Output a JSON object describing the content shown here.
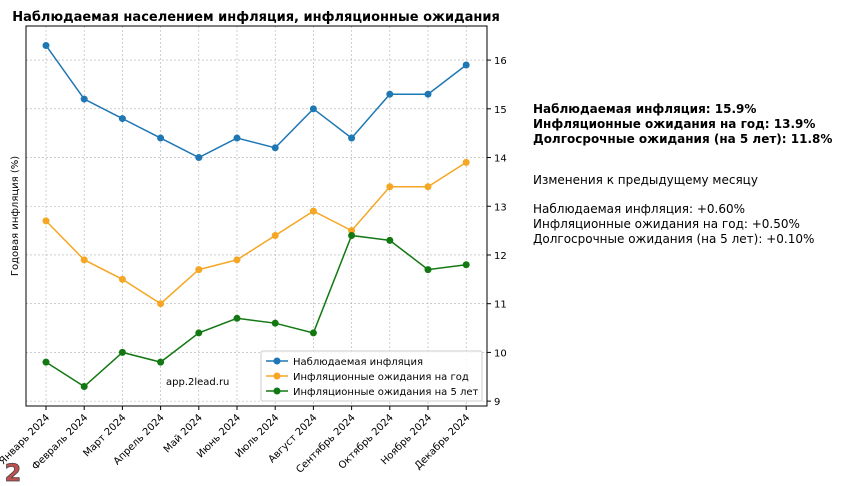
{
  "chart_data": {
    "type": "line",
    "title": "Наблюдаемая населением инфляция, инфляционные ожидания",
    "xlabel": "",
    "ylabel": "Годовая инфляция (%)",
    "categories": [
      "Январь 2024",
      "Февраль 2024",
      "Март 2024",
      "Апрель 2024",
      "Май 2024",
      "Июнь 2024",
      "Июль 2024",
      "Август 2024",
      "Сентябрь 2024",
      "Октябрь 2024",
      "Ноябрь 2024",
      "Декабрь 2024"
    ],
    "series": [
      {
        "name": "Наблюдаемая инфляция",
        "color": "#1f77b4",
        "values": [
          16.3,
          15.2,
          14.8,
          14.4,
          14.0,
          14.4,
          14.2,
          15.0,
          14.4,
          15.3,
          15.3,
          15.9
        ]
      },
      {
        "name": "Инфляционные ожидания на год",
        "color": "#f5a623",
        "values": [
          12.7,
          11.9,
          11.5,
          11.0,
          11.7,
          11.9,
          12.4,
          12.9,
          12.5,
          13.4,
          13.4,
          13.9
        ]
      },
      {
        "name": "Инфляционные ожидания на 5 лет",
        "color": "#127812",
        "values": [
          9.8,
          9.3,
          10.0,
          9.8,
          10.4,
          10.7,
          10.6,
          10.4,
          12.4,
          12.3,
          11.7,
          11.8
        ]
      }
    ],
    "ylim": [
      8.9,
      16.7
    ],
    "yticks": [
      9,
      10,
      11,
      12,
      13,
      14,
      15,
      16
    ],
    "y_axis_side": "right",
    "grid": true,
    "legend": "lower-right",
    "annotation": "app.2lead.ru"
  },
  "summary": {
    "observed": "Наблюдаемая инфляция: 15.9%",
    "one_year": "Инфляционные ожидания на год: 13.9%",
    "five_year": "Долгосрочные ожидания (на 5 лет): 11.8%",
    "changes_title": "Изменения к предыдущему месяцу",
    "observed_change": "Наблюдаемая инфляция: +0.60%",
    "one_year_change": "Инфляционные ожидания на год: +0.50%",
    "five_year_change": "Долгосрочные ожидания (на 5 лет): +0.10%"
  },
  "logo": {
    "glyph": "2"
  }
}
